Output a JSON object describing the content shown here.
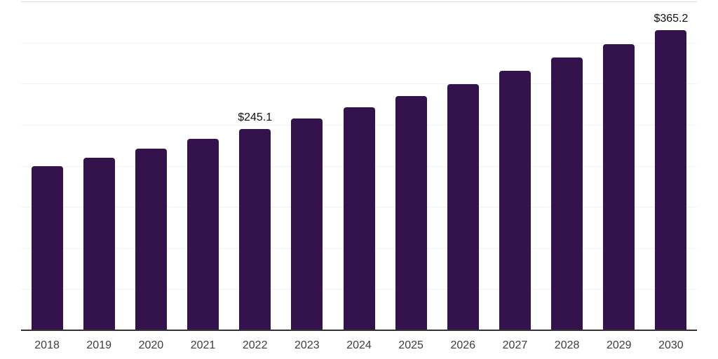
{
  "chart_data": {
    "type": "bar",
    "title": "",
    "xlabel": "",
    "ylabel": "",
    "categories": [
      "2018",
      "2019",
      "2020",
      "2021",
      "2022",
      "2023",
      "2024",
      "2025",
      "2026",
      "2027",
      "2028",
      "2029",
      "2030"
    ],
    "values": [
      199.5,
      210.0,
      221.0,
      232.5,
      245.1,
      257.8,
      271.0,
      285.0,
      299.8,
      315.3,
      331.5,
      348.0,
      365.2
    ],
    "value_labels": [
      null,
      null,
      null,
      null,
      "$245.1",
      null,
      null,
      null,
      null,
      null,
      null,
      null,
      "$365.2"
    ],
    "value_prefix": "$",
    "ylim": [
      0,
      400
    ],
    "gridline_step": 50,
    "grid": "horizontal-only",
    "legend": "none",
    "y_tick_labels_visible": false,
    "colors": {
      "bar": "#34134d",
      "axis_line": "#333333",
      "tick_label": "#3d3d3d",
      "data_label": "#101010",
      "gridline": "#f2f2f2",
      "gridline_top": "#e0e0e0",
      "background": "#ffffff"
    }
  }
}
